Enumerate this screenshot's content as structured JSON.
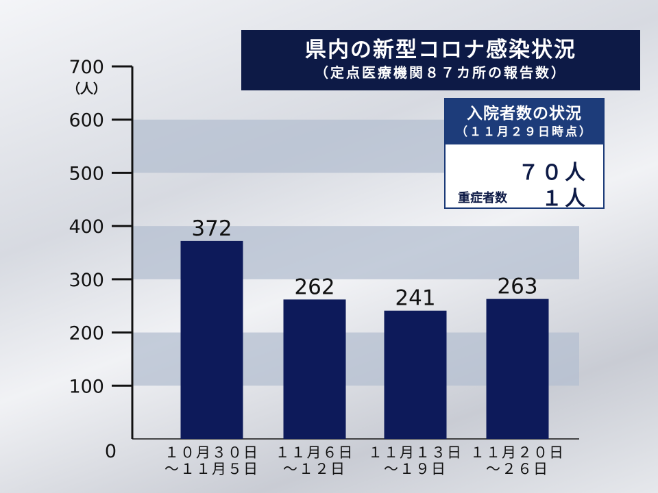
{
  "header": {
    "title": "県内の新型コロナ感染状況",
    "subtitle": "（定点医療機関８７カ所の報告数）"
  },
  "hospital_box": {
    "title": "入院者数の状況",
    "date": "（１１月２９日時点）",
    "hospitalized": "７０人",
    "severe_label": "重症者数",
    "severe_value": "１人"
  },
  "chart_data": {
    "type": "bar",
    "title": "県内の新型コロナ感染状況",
    "subtitle": "（定点医療機関８７カ所の報告数）",
    "ylabel": "（人）",
    "ylim": [
      0,
      700
    ],
    "yticks": [
      0,
      100,
      200,
      300,
      400,
      500,
      600,
      700
    ],
    "categories": [
      [
        "１０月３０日",
        "～１１月５日"
      ],
      [
        "１１月６日",
        "～１２日"
      ],
      [
        "１１月１３日",
        "～１９日"
      ],
      [
        "１１月２０日",
        "～２６日"
      ]
    ],
    "values": [
      372,
      262,
      241,
      263
    ],
    "bar_color": "#0d1a5a",
    "band_color": "#b4bfd0",
    "grid": false,
    "legend": "none"
  }
}
